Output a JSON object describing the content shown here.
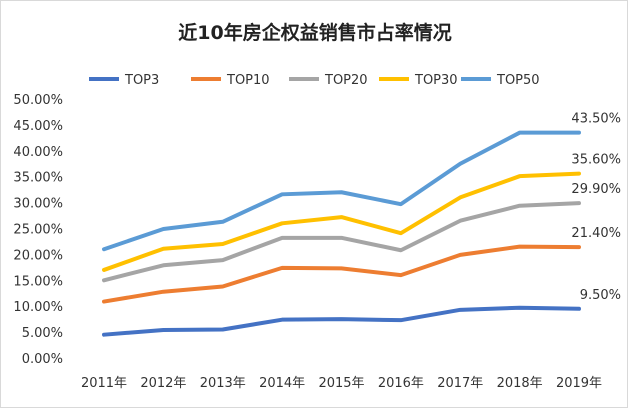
{
  "chart_data": {
    "type": "line",
    "title": "近10年房企权益销售市占率情况",
    "categories": [
      "2011年",
      "2012年",
      "2013年",
      "2014年",
      "2015年",
      "2016年",
      "2017年",
      "2018年",
      "2019年"
    ],
    "ylim": [
      0,
      50
    ],
    "yticks": [
      "0.00%",
      "5.00%",
      "10.00%",
      "15.00%",
      "20.00%",
      "25.00%",
      "30.00%",
      "35.00%",
      "40.00%",
      "45.00%",
      "50.00%"
    ],
    "grid": false,
    "legend": "top",
    "series": [
      {
        "name": "TOP3",
        "color": "#4472c4",
        "values": [
          4.5,
          5.4,
          5.5,
          7.4,
          7.5,
          7.3,
          9.3,
          9.7,
          9.5
        ],
        "end_label": "9.50%"
      },
      {
        "name": "TOP10",
        "color": "#ed7d31",
        "values": [
          10.9,
          12.8,
          13.8,
          17.4,
          17.3,
          16.0,
          19.9,
          21.5,
          21.4
        ],
        "end_label": "21.40%"
      },
      {
        "name": "TOP20",
        "color": "#a5a5a5",
        "values": [
          15.0,
          17.9,
          18.9,
          23.2,
          23.2,
          20.8,
          26.5,
          29.4,
          29.9
        ],
        "end_label": "29.90%"
      },
      {
        "name": "TOP30",
        "color": "#ffc000",
        "values": [
          17.0,
          21.1,
          22.0,
          26.0,
          27.2,
          24.1,
          31.0,
          35.1,
          35.6
        ],
        "end_label": "35.60%"
      },
      {
        "name": "TOP50",
        "color": "#5b9bd5",
        "values": [
          21.0,
          24.9,
          26.3,
          31.6,
          32.0,
          29.7,
          37.5,
          43.5,
          43.5
        ],
        "end_label": "43.50%"
      }
    ]
  }
}
